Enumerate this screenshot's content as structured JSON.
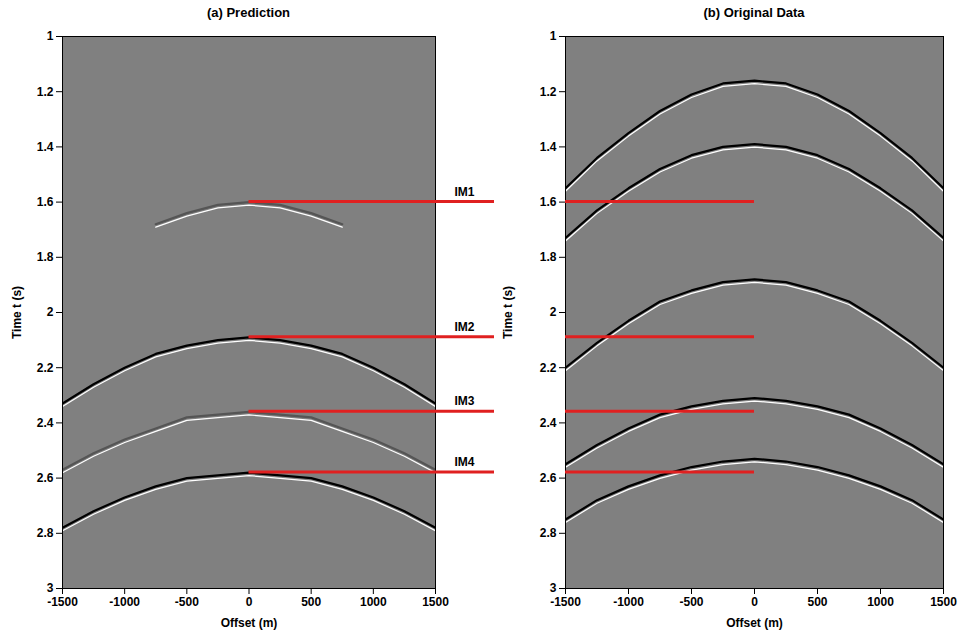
{
  "chart_data": [
    {
      "type": "line",
      "title": "(a) Prediction",
      "x_label": "Offset (m)",
      "y_label": "Time t (s)",
      "x": [
        -1500,
        -1250,
        -1000,
        -750,
        -500,
        -250,
        0,
        250,
        500,
        750,
        1000,
        1250,
        1500
      ],
      "series": [
        {
          "color": "#555555",
          "line_style": "solid",
          "values": [
            null,
            null,
            null,
            1.68,
            1.64,
            1.61,
            1.6,
            1.61,
            1.64,
            1.68,
            null,
            null,
            null
          ]
        },
        {
          "color": "#000000",
          "line_style": "solid",
          "values": [
            2.33,
            2.26,
            2.2,
            2.15,
            2.12,
            2.1,
            2.09,
            2.1,
            2.12,
            2.15,
            2.2,
            2.26,
            2.33
          ]
        },
        {
          "color": "#555555",
          "line_style": "solid",
          "values": [
            2.57,
            2.51,
            2.46,
            2.42,
            2.38,
            2.37,
            2.36,
            2.37,
            2.38,
            2.42,
            2.46,
            2.51,
            2.57
          ]
        },
        {
          "color": "#000000",
          "line_style": "solid",
          "values": [
            2.78,
            2.72,
            2.67,
            2.63,
            2.6,
            2.59,
            2.58,
            2.59,
            2.6,
            2.63,
            2.67,
            2.72,
            2.78
          ]
        }
      ],
      "xlim": [
        -1500,
        1500
      ],
      "xticks": [
        -1500,
        -1000,
        -500,
        0,
        500,
        1000,
        1500
      ],
      "ylim": [
        3,
        1
      ],
      "yticks": [
        1,
        1.2,
        1.4,
        1.6,
        1.8,
        2,
        2.2,
        2.4,
        2.6,
        2.8,
        3
      ],
      "grid": false
    },
    {
      "type": "line",
      "title": "(b) Original Data",
      "x_label": "Offset (m)",
      "y_label": "Time t (s)",
      "x": [
        -1500,
        -1250,
        -1000,
        -750,
        -500,
        -250,
        0,
        250,
        500,
        750,
        1000,
        1250,
        1500
      ],
      "series": [
        {
          "color": "#000000",
          "line_style": "solid",
          "values": [
            1.55,
            1.44,
            1.35,
            1.27,
            1.21,
            1.17,
            1.16,
            1.17,
            1.21,
            1.27,
            1.35,
            1.44,
            1.55
          ]
        },
        {
          "color": "#000000",
          "line_style": "solid",
          "values": [
            1.73,
            1.63,
            1.55,
            1.48,
            1.43,
            1.4,
            1.39,
            1.4,
            1.43,
            1.48,
            1.55,
            1.63,
            1.73
          ]
        },
        {
          "color": "#000000",
          "line_style": "solid",
          "values": [
            2.2,
            2.11,
            2.03,
            1.96,
            1.92,
            1.89,
            1.88,
            1.89,
            1.92,
            1.96,
            2.03,
            2.11,
            2.2
          ]
        },
        {
          "color": "#000000",
          "line_style": "solid",
          "values": [
            2.55,
            2.48,
            2.42,
            2.37,
            2.34,
            2.32,
            2.31,
            2.32,
            2.34,
            2.37,
            2.42,
            2.48,
            2.55
          ]
        },
        {
          "color": "#000000",
          "line_style": "solid",
          "values": [
            2.75,
            2.68,
            2.63,
            2.59,
            2.56,
            2.54,
            2.53,
            2.54,
            2.56,
            2.59,
            2.63,
            2.68,
            2.75
          ]
        }
      ],
      "xlim": [
        -1500,
        1500
      ],
      "xticks": [
        -1500,
        -1000,
        -500,
        0,
        500,
        1000,
        1500
      ],
      "ylim": [
        3,
        1
      ],
      "yticks": [
        1,
        1.2,
        1.4,
        1.6,
        1.8,
        2,
        2.2,
        2.4,
        2.6,
        2.8,
        3
      ],
      "grid": false
    }
  ],
  "annotations": {
    "color": "#e02020",
    "items": [
      {
        "text": "IM1",
        "x": 0,
        "y": 1.6
      },
      {
        "text": "IM2",
        "x": 0,
        "y": 2.09
      },
      {
        "text": "IM3",
        "x": 0,
        "y": 2.36
      },
      {
        "text": "IM4",
        "x": 0,
        "y": 2.58
      }
    ]
  }
}
